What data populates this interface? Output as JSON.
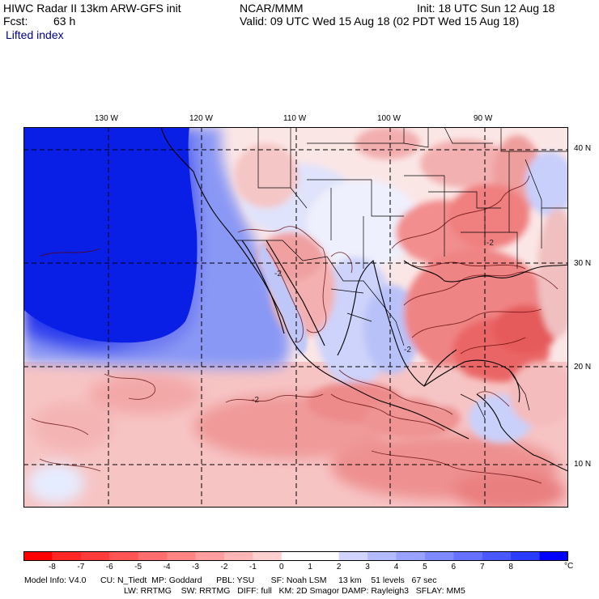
{
  "header": {
    "title_left": "HIWC Radar II 13km ARW-GFS init",
    "org": "NCAR/MMM",
    "init": "Init: 18 UTC Sun 12 Aug 18",
    "fcst_label": "Fcst:",
    "fcst_value": "63 h",
    "valid": "Valid: 09 UTC Wed 15 Aug 18 (02 PDT Wed 15 Aug 18)",
    "field": "Lifted index"
  },
  "map": {
    "lon_labels": [
      "130 W",
      "120 W",
      "110 W",
      "100 W",
      "90 W"
    ],
    "lat_labels": [
      "40 N",
      "30 N",
      "20 N",
      "10 N"
    ],
    "contour_labels": [
      "-2",
      "-2",
      "-2",
      "-2"
    ]
  },
  "colorbar": {
    "ticks": [
      "-8",
      "-7",
      "-6",
      "-5",
      "-4",
      "-3",
      "-2",
      "-1",
      "0",
      "1",
      "2",
      "3",
      "4",
      "5",
      "6",
      "7",
      "8"
    ],
    "unit": "°C",
    "colors": [
      "#ff0000",
      "#ff2626",
      "#ff3c3c",
      "#ff5555",
      "#ff6e6e",
      "#ff8585",
      "#ff9e9e",
      "#ffb6b6",
      "#ffd0d0",
      "#ffffff",
      "#ffffff",
      "#d0d4ff",
      "#b4baff",
      "#9aa2ff",
      "#808aff",
      "#6672ff",
      "#4a58ff",
      "#2a3cff",
      "#0000ff"
    ]
  },
  "model_info": {
    "line1": "Model Info: V4.0      CU: N_Tiedt  MP: Goddard      PBL: YSU       SF: Noah LSM     13 km    51 levels   67 sec",
    "line2": "LW: RRTMG    SW: RRTMG   DIFF: full   KM: 2D Smagor DAMP: Rayleigh3   SFLAY: MM5"
  }
}
